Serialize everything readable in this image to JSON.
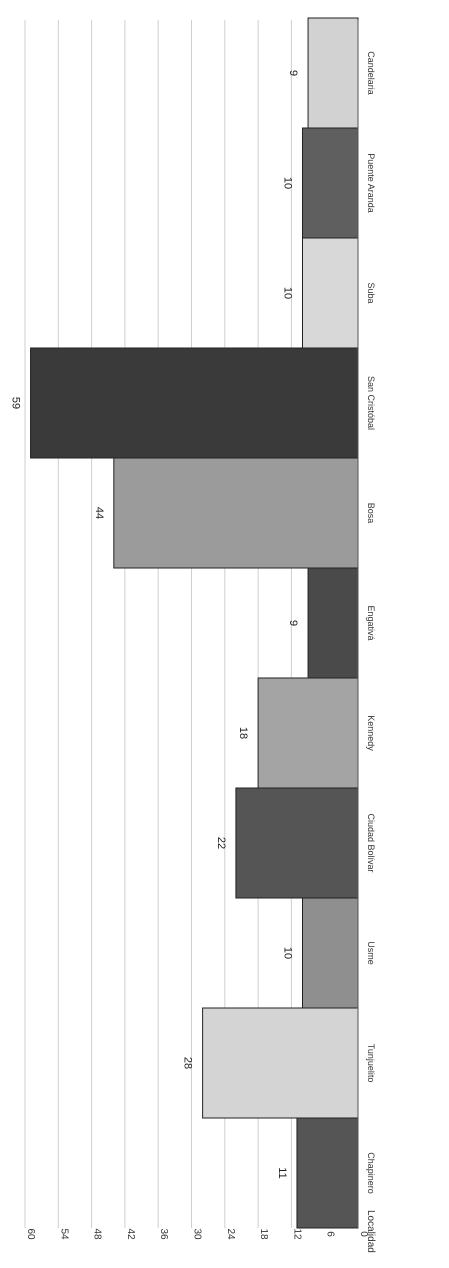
{
  "chart_data": {
    "type": "bar",
    "orientation": "rotated-90",
    "categories": [
      "Chapinero",
      "Tunjuelito",
      "Usme",
      "Ciudad Bolívar",
      "Kennedy",
      "Engativá",
      "Bosa",
      "San Cristóbal",
      "Suba",
      "Puente Aranda",
      "Candelaria"
    ],
    "values": [
      11,
      28,
      10,
      22,
      18,
      9,
      44,
      59,
      10,
      10,
      9
    ],
    "value_labels": [
      "11",
      "28",
      "10",
      "22",
      "18",
      "9",
      "44",
      "59",
      "10",
      "10",
      "9"
    ],
    "bar_colors": [
      "#555555",
      "#d4d4d4",
      "#8f8f8f",
      "#555555",
      "#a4a4a4",
      "#4a4a4a",
      "#9b9b9b",
      "#3a3a3a",
      "#d8d8d8",
      "#5f5f5f",
      "#d2d2d2"
    ],
    "xlabel": "Localidad",
    "ylabel": "",
    "ylim": [
      0,
      60
    ],
    "y_ticks": [
      "0",
      "6",
      "12",
      "18",
      "24",
      "30",
      "36",
      "42",
      "48",
      "54",
      "60"
    ],
    "grid": true
  }
}
